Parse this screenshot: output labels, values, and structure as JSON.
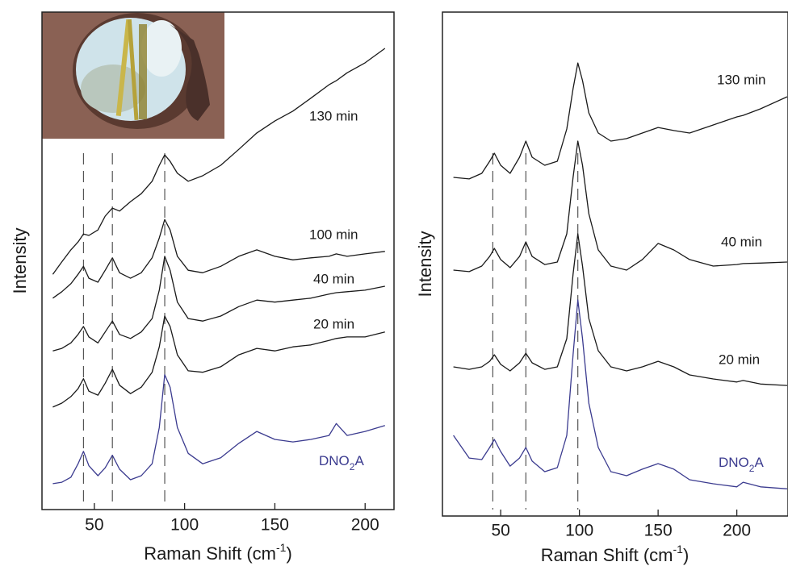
{
  "chart_data": [
    {
      "type": "line",
      "xlabel": [
        "Raman Shift (cm",
        "-1",
        ")"
      ],
      "ylabel": "Intensity",
      "xlim": [
        21,
        216
      ],
      "ylim": [
        0,
        100
      ],
      "xticks": [
        50,
        100,
        150,
        200
      ],
      "reference_lines": [
        44,
        60,
        89
      ],
      "x": [
        27,
        32,
        37,
        41,
        44,
        47,
        52,
        56,
        60,
        64,
        70,
        76,
        82,
        86,
        89,
        92,
        96,
        102,
        110,
        120,
        130,
        140,
        150,
        160,
        170,
        180,
        184,
        190,
        200,
        211
      ],
      "series": [
        {
          "name": "130 min",
          "color": "#1a1a1a",
          "values": [
            47.3,
            49.8,
            52.2,
            53.8,
            55.4,
            55.1,
            56.2,
            59,
            60.6,
            60,
            61.9,
            63.5,
            66,
            69.2,
            71.3,
            70,
            67.6,
            66,
            67.1,
            69.2,
            72.4,
            75.7,
            78.1,
            80.1,
            82.7,
            85.4,
            86.2,
            87.8,
            89.8,
            92.7
          ]
        },
        {
          "name": "100 min",
          "color": "#1a1a1a",
          "values": [
            42.5,
            43.8,
            45.4,
            47.3,
            48.9,
            46.5,
            45.7,
            48.1,
            50.6,
            47.6,
            46.5,
            47.6,
            50.6,
            54.6,
            58.3,
            56.2,
            50.9,
            48.1,
            47.6,
            48.9,
            50.9,
            52.2,
            50.9,
            50.2,
            50.6,
            50.9,
            51.4,
            50.9,
            51.4,
            51.9
          ]
        },
        {
          "name": "40 min",
          "color": "#1a1a1a",
          "values": [
            31.9,
            32.4,
            33.5,
            35.2,
            36.8,
            34.7,
            33.5,
            35.7,
            37.9,
            35.2,
            34.4,
            35.7,
            38.4,
            44.1,
            50.9,
            48.1,
            41.7,
            38.4,
            37.9,
            38.9,
            40.8,
            42.1,
            41.7,
            42.1,
            42.5,
            43.3,
            43.6,
            43.8,
            44.1,
            44.9
          ]
        },
        {
          "name": "20 min",
          "color": "#1a1a1a",
          "values": [
            20.6,
            21.4,
            22.7,
            24.3,
            26.3,
            23.8,
            23,
            25.4,
            28.2,
            25,
            23.3,
            24.6,
            27.6,
            32.7,
            38.9,
            36.8,
            31.1,
            27.9,
            27.6,
            28.7,
            31.1,
            32.4,
            31.9,
            32.7,
            33.1,
            34,
            34.4,
            34.7,
            34.7,
            35.7
          ]
        },
        {
          "name": [
            "DNO",
            "2",
            "A"
          ],
          "color": "#3b3b8f",
          "values": [
            5.2,
            5.5,
            6.5,
            9.2,
            11.7,
            8.8,
            6.8,
            8.4,
            10.9,
            8.1,
            6,
            6.8,
            9.2,
            16.5,
            27.1,
            24.6,
            16.5,
            11.3,
            9.2,
            10.4,
            13.3,
            15.7,
            14.1,
            13.6,
            14.1,
            14.9,
            17.3,
            14.9,
            15.7,
            16.9
          ]
        }
      ]
    },
    {
      "type": "line",
      "xlabel": [
        "Raman Shift (cm",
        "-1",
        ")"
      ],
      "ylabel": "Intensity",
      "xlim": [
        13,
        232
      ],
      "ylim": [
        0,
        100
      ],
      "xticks": [
        50,
        100,
        150,
        200
      ],
      "reference_lines": [
        45,
        66,
        99
      ],
      "x": [
        20,
        30,
        38,
        43,
        46,
        50,
        56,
        62,
        66,
        70,
        78,
        86,
        92,
        96,
        99,
        102,
        106,
        112,
        120,
        130,
        140,
        150,
        160,
        170,
        185,
        200,
        204,
        215,
        232
      ],
      "series": [
        {
          "name": "130 min",
          "color": "#1a1a1a",
          "values": [
            67.2,
            66.9,
            68,
            70.4,
            72,
            69.6,
            68,
            71.2,
            74.4,
            71.2,
            69.6,
            70.4,
            76.8,
            84.8,
            89.9,
            86.4,
            80,
            76,
            74.4,
            74.9,
            76,
            77.1,
            76.5,
            76,
            77.6,
            79.2,
            79.5,
            80.8,
            83.2
          ]
        },
        {
          "name": "40 min",
          "color": "#1a1a1a",
          "values": [
            48.8,
            48.5,
            49.6,
            51.5,
            53.1,
            50.9,
            49.3,
            51.5,
            54.4,
            51.5,
            49.9,
            50.4,
            56,
            67.2,
            74.4,
            69.6,
            60,
            52.8,
            49.6,
            48.8,
            50.9,
            54.1,
            52.8,
            50.9,
            49.6,
            49.9,
            50.1,
            50.2,
            50.4
          ]
        },
        {
          "name": "20 min",
          "color": "#1a1a1a",
          "values": [
            29.6,
            29.1,
            29.6,
            30.7,
            32,
            30.1,
            28.8,
            30.4,
            32.3,
            30.4,
            29.1,
            29.6,
            35.2,
            48,
            56,
            49.6,
            39.2,
            32.8,
            29.6,
            28.8,
            29.6,
            30.7,
            29.6,
            28,
            27.2,
            26.6,
            26.9,
            26.2,
            25.9
          ]
        },
        {
          "name": [
            "DNO",
            "2",
            "A"
          ],
          "color": "#3b3b8f",
          "values": [
            16,
            11.5,
            11.2,
            13.6,
            15.2,
            12.8,
            9.9,
            11.5,
            13.6,
            10.9,
            8.8,
            9.6,
            16,
            32,
            42.9,
            35.2,
            22.4,
            13.6,
            8.8,
            8,
            9.3,
            10.4,
            9.3,
            7.2,
            6.4,
            5.8,
            6.7,
            5.8,
            5.4
          ]
        }
      ]
    }
  ]
}
